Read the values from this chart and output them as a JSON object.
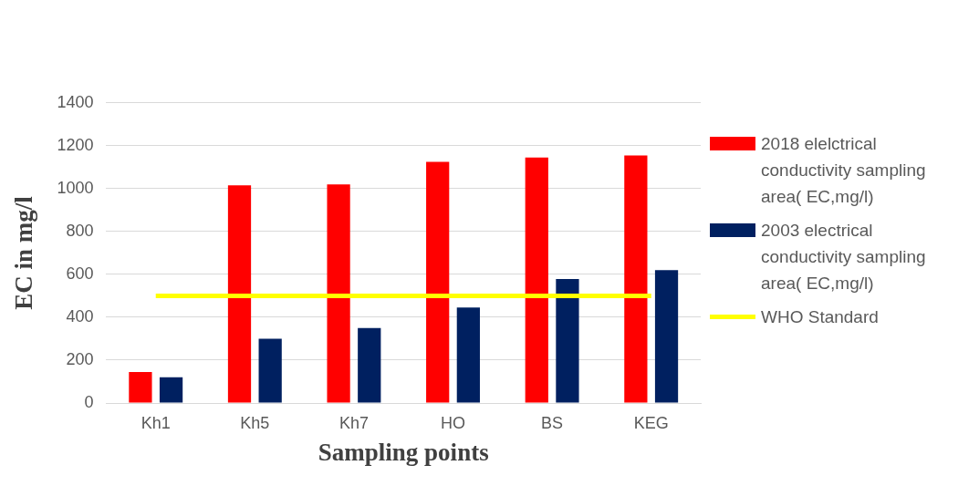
{
  "chart_data": {
    "type": "bar",
    "xlabel": "Sampling points",
    "ylabel": "EC in mg/l",
    "categories": [
      "Kh1",
      "Kh5",
      "Kh7",
      "HO",
      "BS",
      "KEG"
    ],
    "series": [
      {
        "name": "2018 elelctrical conductivity sampling area( EC,mg/l)",
        "color": "#ff0000",
        "values": [
          145,
          1015,
          1020,
          1125,
          1145,
          1155
        ]
      },
      {
        "name": "2003 electrical conductivity sampling area( EC,mg/l)",
        "color": "#002060",
        "values": [
          120,
          300,
          350,
          445,
          578,
          620
        ]
      },
      {
        "name": "WHO Standard",
        "type": "line",
        "color": "#ffff00",
        "values": [
          500,
          500,
          500,
          500,
          500,
          500
        ]
      }
    ],
    "ylim": [
      0,
      1400
    ],
    "yticks": [
      0,
      200,
      400,
      600,
      800,
      1000,
      1200,
      1400
    ],
    "grid": "y",
    "legend": "right"
  }
}
